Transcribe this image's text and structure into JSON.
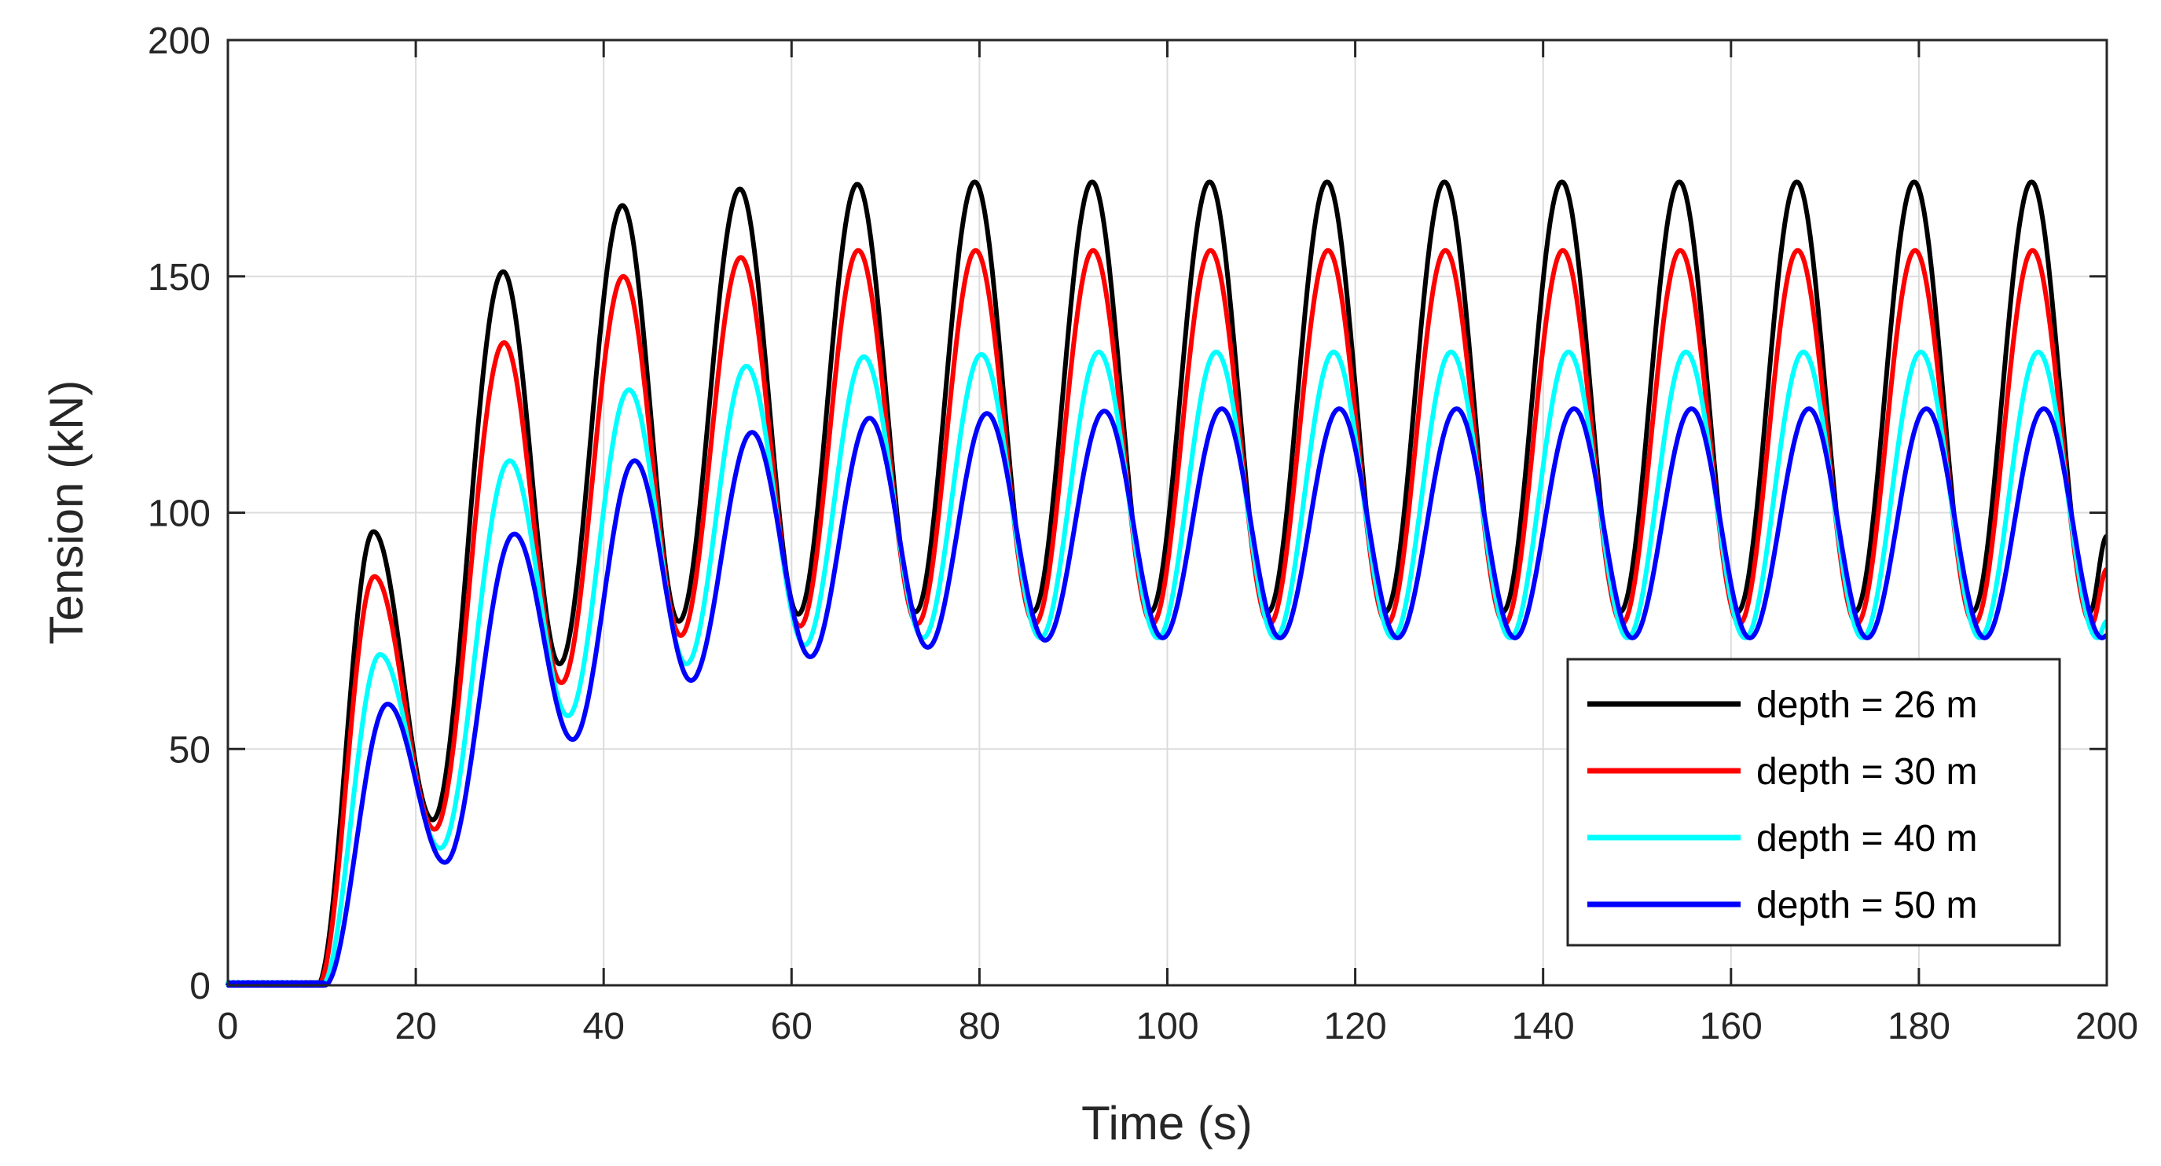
{
  "chart_data": {
    "type": "line",
    "title": "",
    "xlabel": "Time (s)",
    "ylabel": "Tension (kN)",
    "xlim": [
      0,
      200
    ],
    "ylim": [
      0,
      200
    ],
    "xticks": [
      0,
      20,
      40,
      60,
      80,
      100,
      120,
      140,
      160,
      180,
      200
    ],
    "yticks": [
      0,
      50,
      100,
      150,
      200
    ],
    "grid": true,
    "legend_position": "bottom-right",
    "period_s": 12.5,
    "series": [
      {
        "name": "depth = 26 m",
        "color": "#000000",
        "onset_s": 9.5,
        "phase_s": 0,
        "peaks": [
          [
            15.5,
            96
          ],
          [
            29.3,
            151
          ],
          [
            42,
            165
          ],
          [
            54.5,
            168.5
          ],
          [
            67,
            169.5
          ],
          [
            79.5,
            170
          ],
          [
            92,
            170
          ],
          [
            104.5,
            170
          ],
          [
            117,
            170
          ],
          [
            129.5,
            170
          ],
          [
            142,
            170
          ],
          [
            154.5,
            170
          ],
          [
            167,
            170
          ],
          [
            179.5,
            170
          ],
          [
            192,
            170
          ]
        ],
        "troughs": [
          [
            21.8,
            35
          ],
          [
            35.3,
            68
          ],
          [
            48,
            77
          ],
          [
            60.7,
            78.5
          ],
          [
            73.2,
            79
          ],
          [
            85.7,
            79
          ],
          [
            98.2,
            79
          ],
          [
            110.7,
            79
          ],
          [
            123.2,
            79
          ],
          [
            135.7,
            79
          ],
          [
            148.2,
            79
          ],
          [
            160.7,
            79
          ],
          [
            173.2,
            79
          ],
          [
            185.7,
            79
          ],
          [
            198.2,
            79
          ]
        ],
        "end_value": 95
      },
      {
        "name": "depth = 30 m",
        "color": "#ff0000",
        "onset_s": 9.6,
        "phase_s": 0.1,
        "peaks": [
          [
            15.6,
            86.5
          ],
          [
            29.4,
            136
          ],
          [
            42.1,
            150
          ],
          [
            54.6,
            154
          ],
          [
            67.1,
            155.5
          ],
          [
            79.6,
            155.5
          ],
          [
            92.1,
            155.5
          ],
          [
            104.6,
            155.5
          ],
          [
            117.1,
            155.5
          ],
          [
            129.6,
            155.5
          ],
          [
            142.1,
            155.5
          ],
          [
            154.6,
            155.5
          ],
          [
            167.1,
            155.5
          ],
          [
            179.6,
            155.5
          ],
          [
            192.1,
            155.5
          ]
        ],
        "troughs": [
          [
            22,
            33
          ],
          [
            35.5,
            64
          ],
          [
            48.2,
            74
          ],
          [
            60.9,
            76
          ],
          [
            73.4,
            76.5
          ],
          [
            85.9,
            76.5
          ],
          [
            98.4,
            76.5
          ],
          [
            110.9,
            76.5
          ],
          [
            123.4,
            76.5
          ],
          [
            135.9,
            76.5
          ],
          [
            148.4,
            76.5
          ],
          [
            160.9,
            76.5
          ],
          [
            173.4,
            76.5
          ],
          [
            185.9,
            76.5
          ],
          [
            198.4,
            76.5
          ]
        ],
        "end_value": 88
      },
      {
        "name": "depth = 40 m",
        "color": "#00ffff",
        "onset_s": 10,
        "phase_s": 0.4,
        "peaks": [
          [
            16.2,
            70
          ],
          [
            30,
            111
          ],
          [
            42.7,
            126
          ],
          [
            55.2,
            131
          ],
          [
            67.7,
            133
          ],
          [
            80.2,
            133.5
          ],
          [
            92.7,
            134
          ],
          [
            105.2,
            134
          ],
          [
            117.7,
            134
          ],
          [
            130.2,
            134
          ],
          [
            142.7,
            134
          ],
          [
            155.2,
            134
          ],
          [
            167.7,
            134
          ],
          [
            180.2,
            134
          ],
          [
            192.7,
            134
          ]
        ],
        "troughs": [
          [
            22.6,
            29
          ],
          [
            36.2,
            57
          ],
          [
            48.8,
            68
          ],
          [
            61.4,
            72
          ],
          [
            74,
            73.5
          ],
          [
            86.5,
            73.5
          ],
          [
            99,
            73.5
          ],
          [
            111.5,
            73.5
          ],
          [
            124,
            73.5
          ],
          [
            136.5,
            73.5
          ],
          [
            149,
            73.5
          ],
          [
            161.5,
            73.5
          ],
          [
            174,
            73.5
          ],
          [
            186.5,
            73.5
          ],
          [
            199,
            73.5
          ]
        ],
        "end_value": 77
      },
      {
        "name": "depth = 50 m",
        "color": "#0000ff",
        "onset_s": 10.3,
        "phase_s": 0.8,
        "peaks": [
          [
            17,
            59.5
          ],
          [
            30.5,
            95.5
          ],
          [
            43.3,
            111
          ],
          [
            55.8,
            117
          ],
          [
            68.3,
            120
          ],
          [
            80.8,
            121
          ],
          [
            93.3,
            121.5
          ],
          [
            105.8,
            122
          ],
          [
            118.3,
            122
          ],
          [
            130.8,
            122
          ],
          [
            143.3,
            122
          ],
          [
            155.8,
            122
          ],
          [
            168.3,
            122
          ],
          [
            180.8,
            122
          ],
          [
            193.3,
            122
          ]
        ],
        "troughs": [
          [
            23.1,
            26
          ],
          [
            36.7,
            52
          ],
          [
            49.3,
            64.5
          ],
          [
            62,
            69.5
          ],
          [
            74.5,
            71.5
          ],
          [
            87,
            73
          ],
          [
            99.5,
            73.5
          ],
          [
            112,
            73.5
          ],
          [
            124.5,
            73.5
          ],
          [
            137,
            73.5
          ],
          [
            149.5,
            73.5
          ],
          [
            162,
            73.5
          ],
          [
            174.5,
            73.5
          ],
          [
            187,
            73.5
          ],
          [
            199.5,
            73.5
          ]
        ],
        "end_value": 74
      }
    ]
  }
}
